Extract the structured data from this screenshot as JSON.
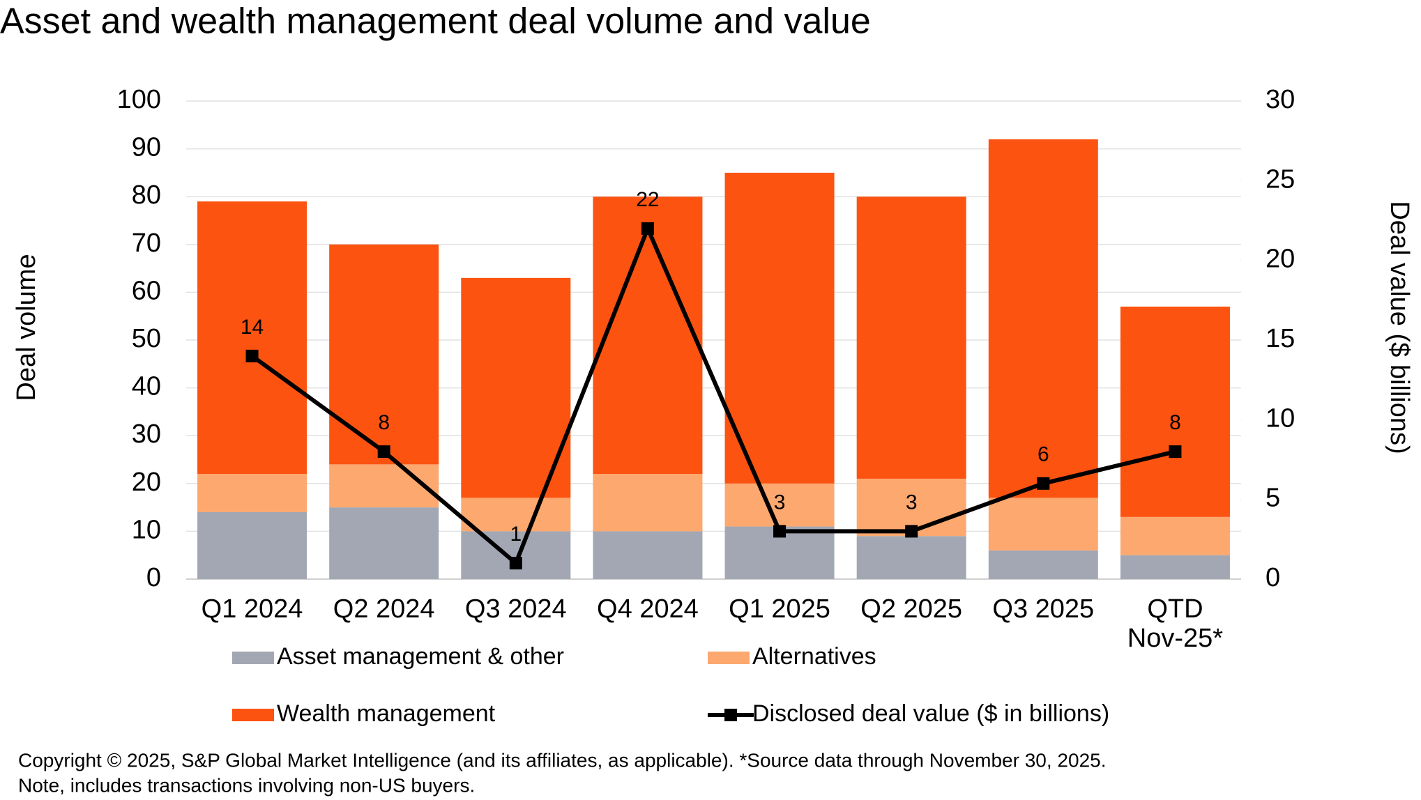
{
  "chart_data": {
    "type": "bar",
    "stacked": true,
    "title": "Asset and wealth management deal volume and value",
    "y_label": "Deal volume",
    "y2_label": "Deal value ($ billions)",
    "categories": [
      "Q1 2024",
      "Q2 2024",
      "Q3 2024",
      "Q4 2024",
      "Q1 2025",
      "Q2 2025",
      "Q3 2025",
      "QTD Nov-25*"
    ],
    "series": [
      {
        "name": "Asset management & other",
        "type": "bar",
        "color": "#a2a7b3",
        "values": [
          14,
          15,
          10,
          10,
          11,
          9,
          6,
          5
        ]
      },
      {
        "name": "Alternatives",
        "type": "bar",
        "color": "#fca86f",
        "values": [
          8,
          9,
          7,
          12,
          9,
          12,
          11,
          8
        ]
      },
      {
        "name": "Wealth management",
        "type": "bar",
        "color": "#fc5311",
        "values": [
          57,
          46,
          46,
          58,
          65,
          59,
          75,
          44
        ]
      },
      {
        "name": "Disclosed deal value ($ in billions)",
        "type": "line",
        "axis": "y2",
        "color": "#000000",
        "values": [
          14,
          8,
          1,
          22,
          3,
          3,
          6,
          8
        ]
      }
    ],
    "ylim": [
      0,
      100
    ],
    "yticks": [
      0,
      10,
      20,
      30,
      40,
      50,
      60,
      70,
      80,
      90,
      100
    ],
    "y2lim": [
      0,
      30
    ],
    "y2ticks": [
      0,
      5,
      10,
      15,
      20,
      25,
      30
    ],
    "grid": true,
    "legend": "bottom",
    "footnote": [
      "Copyright © 2025, S&P Global Market Intelligence (and its affiliates, as applicable). *Source data through November 30, 2025.",
      "Note, includes transactions involving non-US buyers."
    ]
  }
}
